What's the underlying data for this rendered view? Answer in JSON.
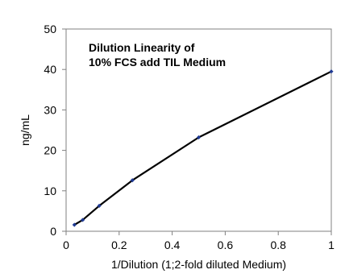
{
  "chart_data": {
    "type": "line",
    "title_lines": [
      "Dilution Linearity of",
      "10% FCS add TIL Medium"
    ],
    "xlabel": "1/Dilution (1;2-fold diluted Medium)",
    "ylabel": "ng/mL",
    "xlim": [
      0,
      1
    ],
    "ylim": [
      0,
      50
    ],
    "x_ticks": [
      0,
      0.2,
      0.4,
      0.6,
      0.8,
      1
    ],
    "x_tick_labels": [
      "0",
      "0.2",
      "0.4",
      "0.6",
      "0.8",
      "1"
    ],
    "y_ticks": [
      0,
      10,
      20,
      30,
      40,
      50
    ],
    "y_tick_labels": [
      "0",
      "10",
      "20",
      "30",
      "40",
      "50"
    ],
    "grid": false,
    "series": [
      {
        "x": [
          0.03125,
          0.0625,
          0.125,
          0.25,
          0.5,
          1
        ],
        "y": [
          1.6,
          2.8,
          6.3,
          12.6,
          23.2,
          39.5
        ],
        "color": "#000000",
        "marker_color": "#1f3a93"
      }
    ]
  }
}
